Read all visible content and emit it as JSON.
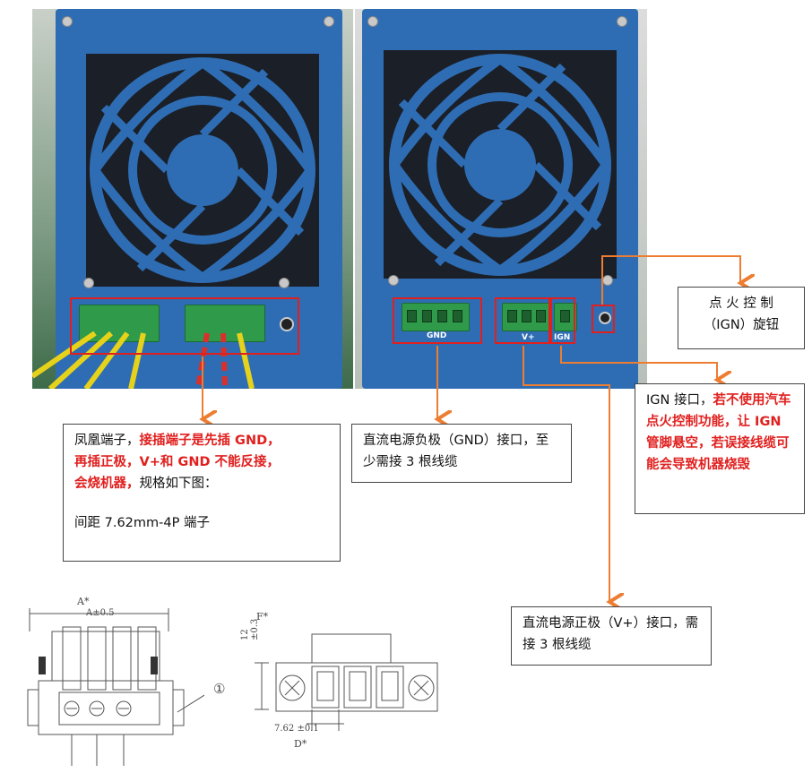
{
  "gnd_label": "GND",
  "vplus_label": "V+",
  "ign_label": "IGN",
  "box_phoenix": {
    "normal1": "凤凰端子，",
    "red1": "接插端子是先插 GND，",
    "red2": "再插正极，V+和 GND 不能反接，",
    "red3": "会烧机器，",
    "normal2": "规格如下图：",
    "spec": "间距 7.62mm-4P 端子"
  },
  "box_gnd": {
    "text": "直流电源负极（GND）接口，至少需接 3 根线缆"
  },
  "box_ignition": {
    "text": "点 火 控 制（IGN）旋钮"
  },
  "box_ign": {
    "normal": "IGN 接口，",
    "red": "若不使用汽车点火控制功能，让 IGN 管脚悬空，若误接线缆可能会导致机器烧毁"
  },
  "box_vplus": {
    "text": "直流电源正极（V+）接口，需接 3 根线缆"
  },
  "drawing_labels": {
    "a_dim": "A*",
    "a_tol": "A±0.5",
    "callout_1": "①",
    "f_dim": "F*",
    "f_val": "12 ±0.3",
    "pitch": "7.62 ±0.1",
    "d_dim": "D*"
  },
  "colors": {
    "accent": "#ed7d31",
    "highlight": "#e0201f",
    "panel": "#2e6db4"
  }
}
